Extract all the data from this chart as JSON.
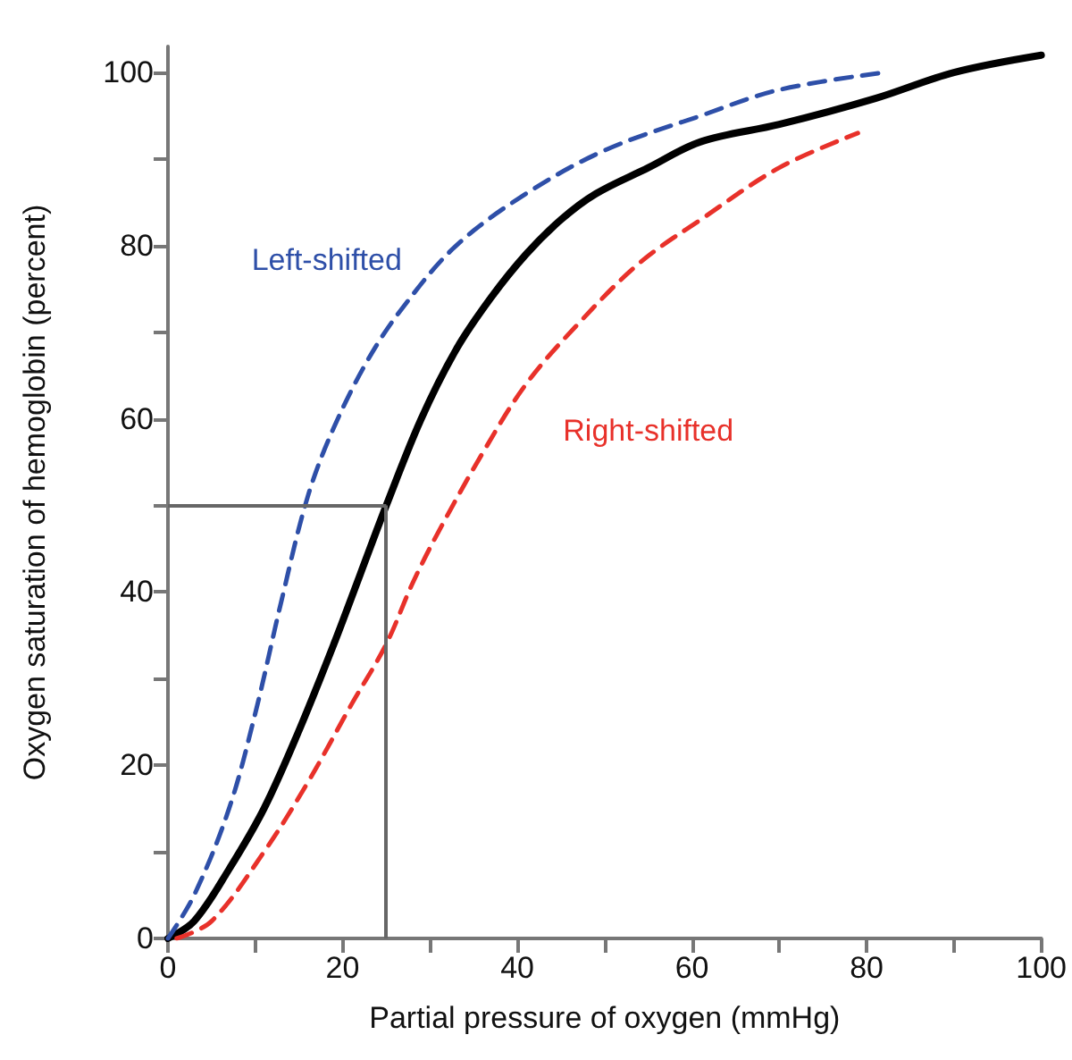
{
  "chart_data": {
    "type": "line",
    "xlabel": "Partial pressure of oxygen (mmHg)",
    "ylabel": "Oxygen saturation of hemoglobin (percent)",
    "xlim": [
      0,
      100
    ],
    "ylim": [
      0,
      103
    ],
    "xticks": [
      0,
      {
        "value": 10,
        "label": null
      },
      20,
      {
        "value": 30,
        "label": null
      },
      40,
      {
        "value": 50,
        "label": null
      },
      60,
      {
        "value": 70,
        "label": null
      },
      80,
      {
        "value": 90,
        "label": null
      },
      100
    ],
    "yticks": [
      0,
      {
        "value": 10,
        "label": null
      },
      20,
      {
        "value": 30,
        "label": null
      },
      40,
      {
        "value": 50,
        "label": null
      },
      60,
      {
        "value": 70,
        "label": null
      },
      80,
      {
        "value": 90,
        "label": null
      },
      100
    ],
    "grid": false,
    "legend": false,
    "marker": "none",
    "series": [
      {
        "color": "#000000",
        "line_style": "solid",
        "x": [
          0,
          3,
          7,
          11,
          15,
          19,
          22,
          25,
          29,
          33,
          37,
          41,
          45,
          49,
          55,
          61,
          70,
          81,
          90,
          100
        ],
        "values": [
          0,
          2,
          8,
          15,
          24,
          34,
          42,
          50,
          60,
          68,
          74,
          79,
          83,
          86,
          89,
          92,
          94,
          97,
          100,
          102
        ]
      },
      {
        "name": "Left-shifted",
        "color": "#2e4fa8",
        "line_style": "dashed",
        "x": [
          0,
          3,
          7,
          10,
          13,
          16,
          19,
          23,
          27,
          33,
          41,
          50,
          61,
          70,
          82
        ],
        "values": [
          0,
          5,
          15,
          26,
          39,
          51,
          59,
          67,
          73,
          80,
          86,
          91,
          95,
          98,
          100
        ]
      },
      {
        "name": "Right-shifted",
        "color": "#e8312a",
        "line_style": "dashed",
        "x": [
          1,
          5,
          11,
          16,
          21,
          25,
          28,
          31,
          36,
          41,
          47,
          54,
          61,
          70,
          79
        ],
        "values": [
          0,
          2,
          10,
          18,
          27,
          34,
          41,
          47,
          56,
          64,
          71,
          78,
          83,
          89,
          93
        ]
      }
    ],
    "ref_lines": [
      {
        "axis": "y",
        "value": 50,
        "color": "#666666",
        "line_style": "solid"
      },
      {
        "axis": "x",
        "value": 25,
        "color": "#666666",
        "line_style": "solid"
      }
    ]
  }
}
